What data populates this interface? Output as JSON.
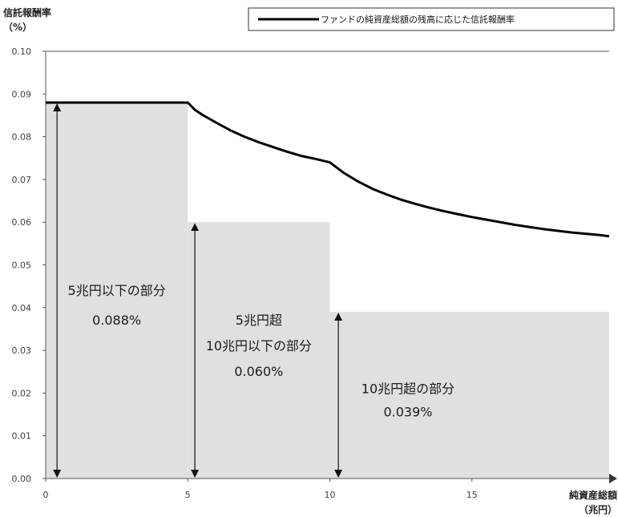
{
  "chart_data": {
    "type": "area",
    "title": "",
    "ylabel": [
      "信託報酬率",
      "（%）"
    ],
    "xlabel": [
      "純資産総額",
      "（兆円）"
    ],
    "xlim": [
      0,
      20
    ],
    "ylim": [
      0,
      0.1
    ],
    "x_ticks": [
      0,
      5,
      10,
      15
    ],
    "x_tick_labels": [
      "0",
      "5",
      "10",
      "15"
    ],
    "y_ticks": [
      0,
      0.01,
      0.02,
      0.03,
      0.04,
      0.05,
      0.06,
      0.07,
      0.08,
      0.09,
      0.1
    ],
    "y_tick_labels": [
      "0.00",
      "0.01",
      "0.02",
      "0.03",
      "0.04",
      "0.05",
      "0.06",
      "0.07",
      "0.08",
      "0.09",
      "0.10"
    ],
    "legend": {
      "position": "top-right",
      "label": "ファンドの純資産総額の残高に応じた信託報酬率"
    },
    "series": [
      {
        "name": "ファンドの純資産総額の残高に応じた信託報酬率",
        "kind": "line",
        "color": "#000000",
        "x": [
          0,
          5,
          5.25,
          5.5,
          6,
          6.5,
          7,
          7.5,
          8,
          8.5,
          9,
          9.5,
          10,
          10.5,
          11,
          11.5,
          12,
          12.5,
          13,
          13.5,
          14,
          14.5,
          15,
          15.5,
          16,
          16.5,
          17,
          17.5,
          18,
          18.5,
          19,
          19.5,
          20
        ],
        "y": [
          0.088,
          0.088,
          0.0863,
          0.0852,
          0.0833,
          0.0815,
          0.08,
          0.0787,
          0.0776,
          0.0765,
          0.0755,
          0.0748,
          0.074,
          0.0715,
          0.0695,
          0.0678,
          0.0665,
          0.0653,
          0.0643,
          0.0634,
          0.0626,
          0.0619,
          0.0612,
          0.0606,
          0.06,
          0.0594,
          0.0589,
          0.0584,
          0.058,
          0.0576,
          0.0573,
          0.057,
          0.0567
        ]
      },
      {
        "name": "tiers",
        "kind": "step-area",
        "color": "#e0e0e0",
        "segments": [
          {
            "x0": 0,
            "x1": 5,
            "rate": 0.088
          },
          {
            "x0": 5,
            "x1": 10,
            "rate": 0.06
          },
          {
            "x0": 10,
            "x1": 20,
            "rate": 0.039
          }
        ]
      }
    ],
    "annotations": [
      {
        "x": 2.5,
        "y_line1": 0.043,
        "y_line2": 0.036,
        "line1": "5兆円以下の部分",
        "line2": "0.088%"
      },
      {
        "x": 7.5,
        "y_line1": 0.036,
        "y_line2": 0.03,
        "y_line3": 0.024,
        "line1": "5兆円超",
        "line2": "10兆円以下の部分",
        "line3": "0.060%"
      },
      {
        "x": 12.75,
        "y_line1": 0.02,
        "y_line2": 0.0145,
        "line1": "10兆円超の部分",
        "line2": "0.039%"
      }
    ],
    "arrows": [
      {
        "x": 0.4,
        "y0": 0,
        "y1": 0.088
      },
      {
        "x": 5.25,
        "y0": 0,
        "y1": 0.06
      },
      {
        "x": 10.3,
        "y0": 0,
        "y1": 0.039
      }
    ],
    "grid": false
  }
}
